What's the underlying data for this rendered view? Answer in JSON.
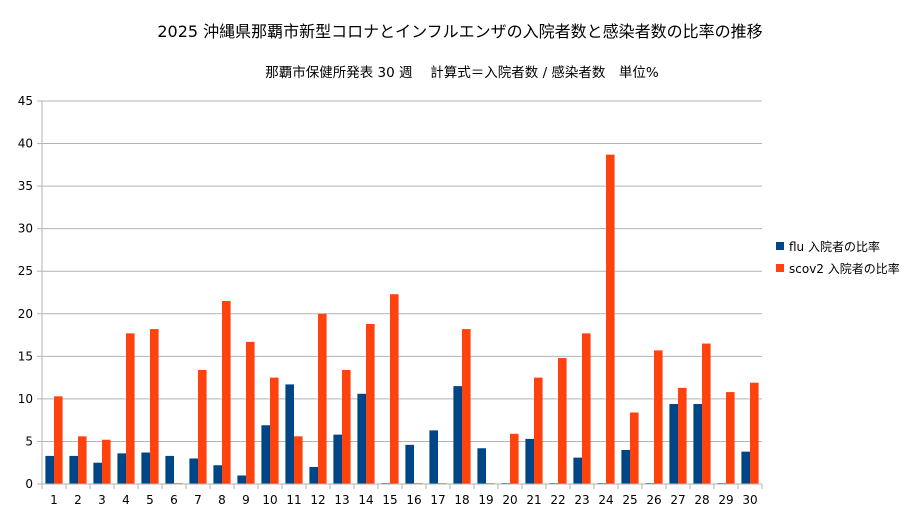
{
  "chart_data": {
    "type": "bar",
    "title": "2025 沖縄県那覇市新型コロナとインフルエンザの入院者数と感染者数の比率の推移",
    "subtitle": "那覇市保健所発表 30 週　 計算式＝入院者数 / 感染者数　単位%",
    "xlabel": "",
    "ylabel": "",
    "ylim": [
      0,
      45
    ],
    "yticks": [
      0,
      5,
      10,
      15,
      20,
      25,
      30,
      35,
      40,
      45
    ],
    "grid": true,
    "legend_position": "right",
    "categories": [
      "1",
      "2",
      "3",
      "4",
      "5",
      "6",
      "7",
      "8",
      "9",
      "10",
      "11",
      "12",
      "13",
      "14",
      "15",
      "16",
      "17",
      "18",
      "19",
      "20",
      "21",
      "22",
      "23",
      "24",
      "25",
      "26",
      "27",
      "28",
      "29",
      "30"
    ],
    "series": [
      {
        "name": "flu 入院者の比率",
        "color": "#004586",
        "values": [
          3.3,
          3.3,
          2.5,
          3.6,
          3.7,
          3.3,
          3.0,
          2.2,
          1.0,
          6.9,
          11.7,
          2.0,
          5.8,
          10.6,
          0.1,
          4.6,
          6.3,
          11.5,
          4.2,
          0.1,
          5.3,
          0.1,
          3.1,
          0.1,
          4.0,
          0.1,
          9.4,
          9.4,
          0.1,
          3.8
        ]
      },
      {
        "name": "scov2 入院者の比率",
        "color": "#ff420e",
        "values": [
          10.3,
          5.6,
          5.2,
          17.7,
          18.2,
          0.1,
          13.4,
          21.5,
          16.7,
          12.5,
          5.6,
          20.0,
          13.4,
          18.8,
          22.3,
          0.1,
          0.1,
          18.2,
          0.1,
          5.9,
          12.5,
          14.8,
          17.7,
          38.7,
          8.4,
          15.7,
          11.3,
          16.5,
          10.8,
          11.9
        ]
      }
    ]
  }
}
